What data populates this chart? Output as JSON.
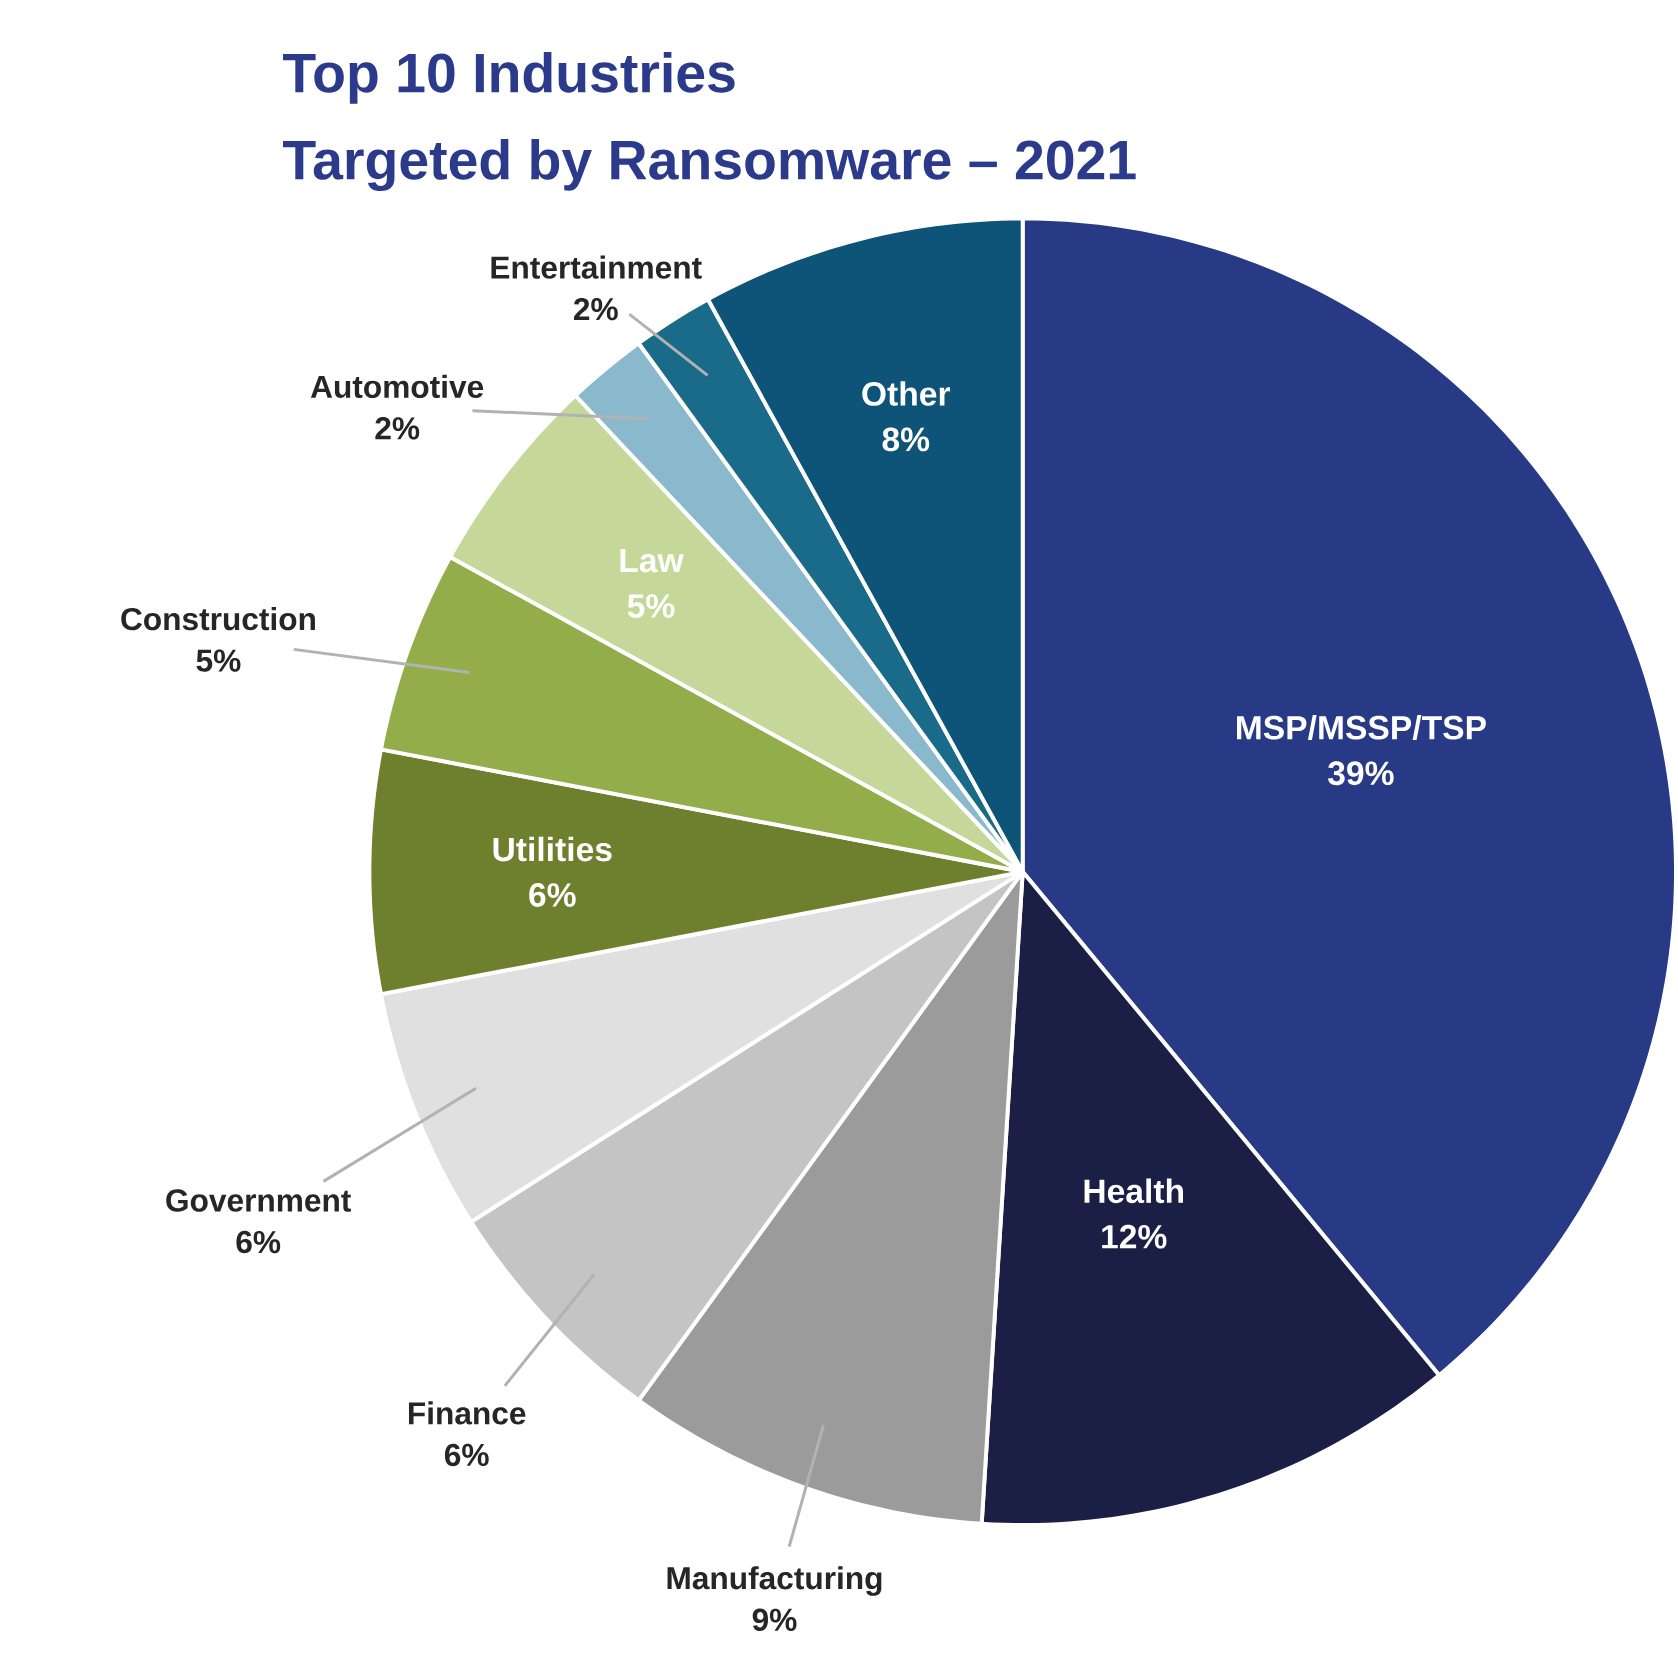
{
  "chart_data": {
    "type": "pie",
    "title": "Top 10 Industries\nTargeted by Ransomware – 2021",
    "categories": [
      "MSP/MSSP/TSP",
      "Health",
      "Manufacturing",
      "Finance",
      "Government",
      "Utilities",
      "Construction",
      "Law",
      "Automotive",
      "Entertainment",
      "Other"
    ],
    "values": [
      39,
      12,
      9,
      6,
      6,
      6,
      5,
      5,
      2,
      2,
      8
    ],
    "value_labels": [
      "39%",
      "12%",
      "9%",
      "6%",
      "6%",
      "6%",
      "5%",
      "5%",
      "2%",
      "2%",
      "8%"
    ],
    "colors": [
      "#283a85",
      "#1c1f45",
      "#9b9b9b",
      "#c4c4c4",
      "#e0e0e0",
      "#6e7f2e",
      "#93ad4b",
      "#c5d89a",
      "#8ab8cc",
      "#1a6a8a",
      "#0e5478"
    ]
  }
}
